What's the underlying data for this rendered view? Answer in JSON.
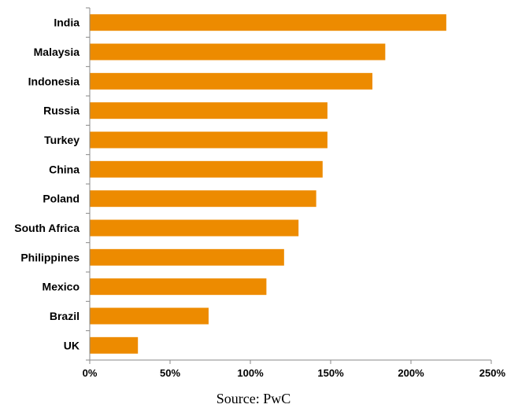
{
  "chart_data": {
    "type": "bar",
    "orientation": "horizontal",
    "categories": [
      "India",
      "Malaysia",
      "Indonesia",
      "Russia",
      "Turkey",
      "China",
      "Poland",
      "South Africa",
      "Philippines",
      "Mexico",
      "Brazil",
      "UK"
    ],
    "values": [
      222,
      184,
      176,
      148,
      148,
      145,
      141,
      130,
      121,
      110,
      74,
      30
    ],
    "value_unit": "%",
    "xlim": [
      0,
      250
    ],
    "x_ticks": [
      0,
      50,
      100,
      150,
      200,
      250
    ],
    "x_tick_labels": [
      "0%",
      "50%",
      "100%",
      "150%",
      "200%",
      "250%"
    ],
    "bar_color": "#ED8B00",
    "grid": false,
    "title": "",
    "xlabel": "",
    "ylabel": ""
  },
  "source_text": "Source: PwC"
}
